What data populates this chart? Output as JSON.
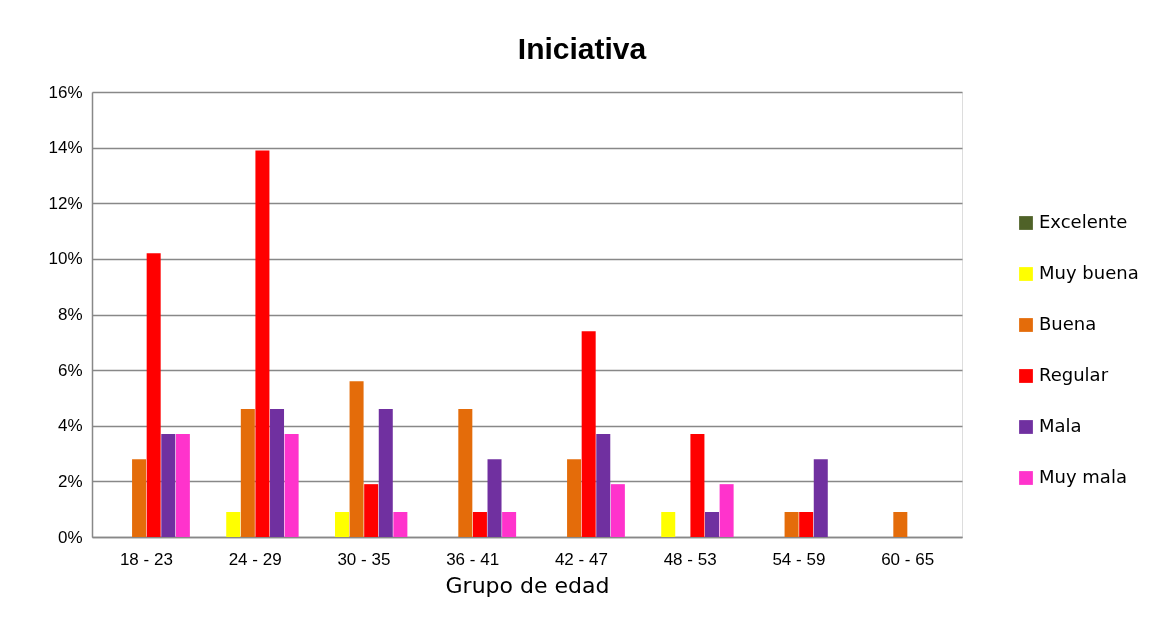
{
  "chart_data": {
    "type": "bar",
    "title": "Iniciativa",
    "xlabel": "Grupo de edad",
    "categories": [
      "18 - 23",
      "24 - 29",
      "30 - 35",
      "36 - 41",
      "42 - 47",
      "48 - 53",
      "54 - 59",
      "60 - 65"
    ],
    "series": [
      {
        "name": "Excelente",
        "color": "#4f6228",
        "values": [
          0,
          0,
          0,
          0,
          0,
          0,
          0,
          0
        ]
      },
      {
        "name": "Muy buena",
        "color": "#ffff00",
        "values": [
          0,
          0.9,
          0.9,
          0,
          0,
          0.9,
          0,
          0
        ]
      },
      {
        "name": "Buena",
        "color": "#e46c0a",
        "values": [
          2.8,
          4.6,
          5.6,
          4.6,
          2.8,
          0,
          0.9,
          0.9
        ]
      },
      {
        "name": "Regular",
        "color": "#ff0000",
        "values": [
          10.2,
          13.9,
          1.9,
          0.9,
          7.4,
          3.7,
          0.9,
          0
        ]
      },
      {
        "name": "Mala",
        "color": "#7030a0",
        "values": [
          3.7,
          4.6,
          4.6,
          2.8,
          3.7,
          0.9,
          2.8,
          0
        ]
      },
      {
        "name": "Muy mala",
        "color": "#ff33cc",
        "values": [
          3.7,
          3.7,
          0.9,
          0.9,
          1.9,
          1.9,
          0,
          0
        ]
      }
    ],
    "ylim": [
      0,
      16
    ],
    "yticks": [
      {
        "value": 0,
        "label": "0%"
      },
      {
        "value": 2,
        "label": "2%"
      },
      {
        "value": 4,
        "label": "4%"
      },
      {
        "value": 6,
        "label": "6%"
      },
      {
        "value": 8,
        "label": "8%"
      },
      {
        "value": 10,
        "label": "10%"
      },
      {
        "value": 12,
        "label": "12%"
      },
      {
        "value": 14,
        "label": "14%"
      },
      {
        "value": 16,
        "label": "16%"
      }
    ],
    "grid": "y",
    "legend": "right"
  }
}
